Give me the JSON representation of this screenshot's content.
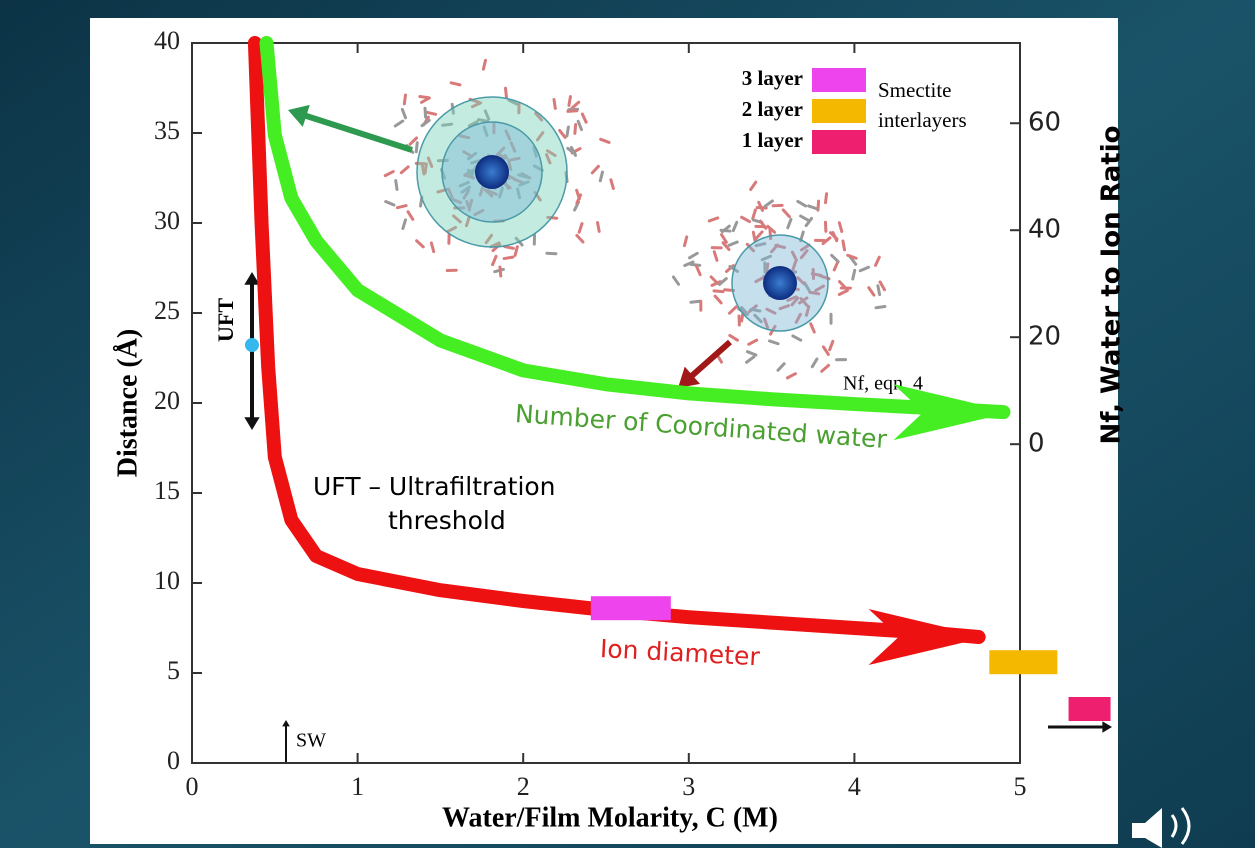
{
  "chart_data": {
    "type": "line",
    "x_label": "Water/Film Molarity, C (M)",
    "y_label": "Distance (Å)",
    "y2_label": "Nf, Water to Ion Ratio",
    "xlim": [
      0,
      5
    ],
    "xticks": [
      0,
      1,
      2,
      3,
      4,
      5
    ],
    "ylim": [
      0,
      40
    ],
    "yticks": [
      0,
      5,
      10,
      15,
      20,
      25,
      30,
      35,
      40
    ],
    "y2lim": [
      -59.6,
      75
    ],
    "y2ticks": [
      0,
      20,
      40,
      60
    ],
    "series": [
      {
        "name": "Ion diameter",
        "color": "#ee1111",
        "x": [
          0.38,
          0.42,
          0.46,
          0.5,
          0.6,
          0.75,
          1,
          1.5,
          2,
          2.5,
          3,
          3.5,
          4,
          4.5,
          4.75
        ],
        "values": [
          40,
          30,
          22,
          17,
          13.5,
          11.5,
          10.5,
          9.6,
          9,
          8.5,
          8.1,
          7.8,
          7.5,
          7.2,
          7.0
        ]
      },
      {
        "name": "Number of Coordinated water",
        "color": "#44ee22",
        "axis": "y2",
        "x": [
          0.45,
          0.5,
          0.6,
          0.75,
          1,
          1.5,
          2,
          2.5,
          3,
          3.5,
          4,
          4.5,
          4.9
        ],
        "values": [
          75,
          57.8,
          46,
          38,
          28.8,
          19.4,
          13.8,
          11.2,
          9.5,
          8.4,
          7.5,
          6.7,
          6
        ]
      }
    ],
    "annotations": [
      "UFT – Ultrafiltration",
      "threshold",
      "UFT",
      "SW",
      "Nf, eqn. 4"
    ],
    "layers": [
      {
        "name": "3 layer",
        "color": "#ee44ee",
        "x": 2.65,
        "y": 8.6
      },
      {
        "name": "2 layer",
        "color": "#f5b800",
        "x": 5.02,
        "y": 5.6
      },
      {
        "name": "1 layer",
        "color": "#ee1f6f",
        "x": 5.42,
        "y": 3.0
      }
    ],
    "layer_title": [
      "Smectite",
      "interlayers"
    ]
  }
}
